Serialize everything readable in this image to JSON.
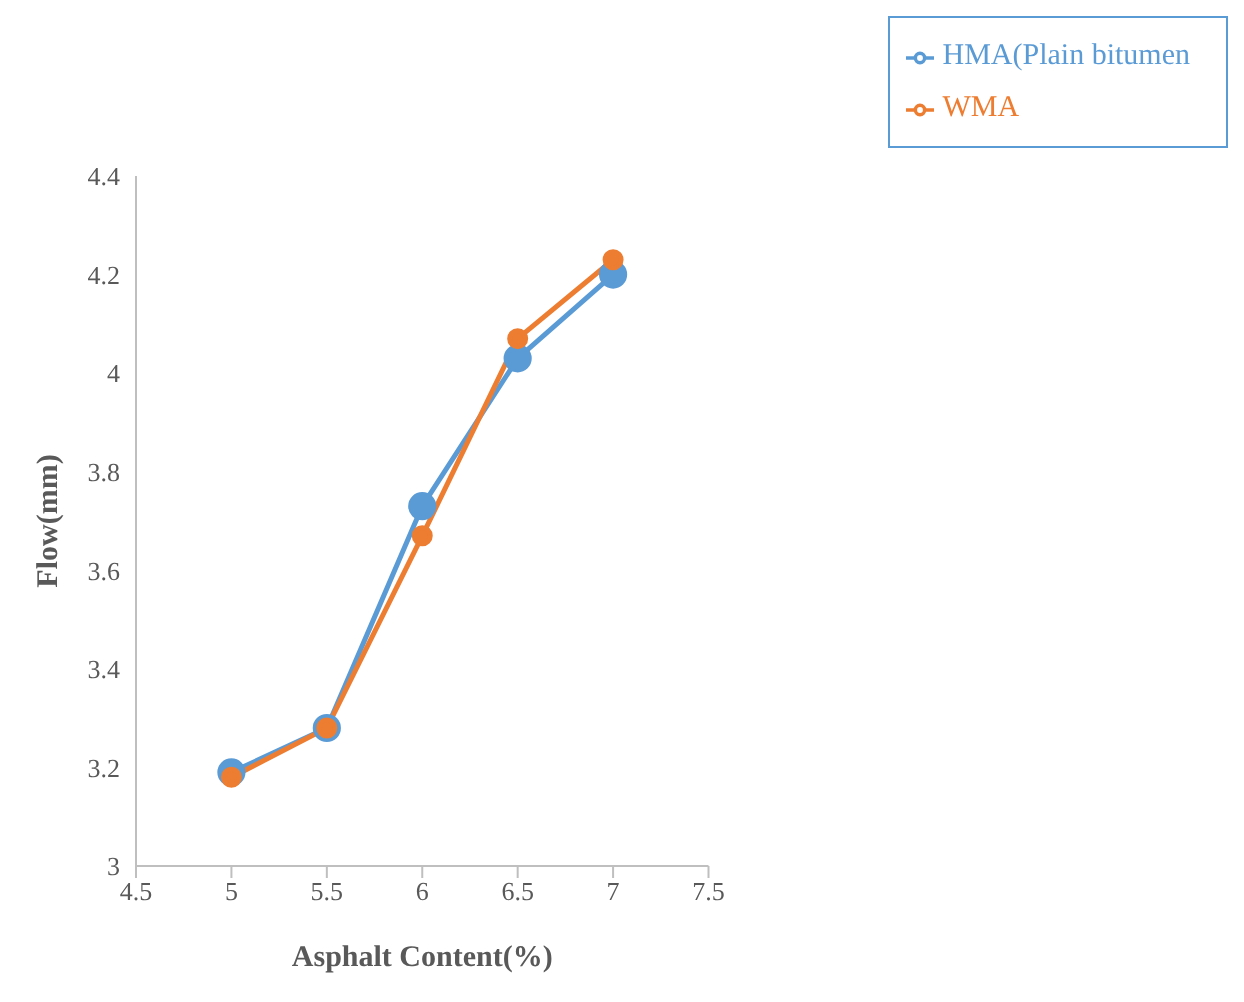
{
  "chart_data": {
    "type": "line",
    "xlabel": "Asphalt Content(%)",
    "ylabel": "Flow(mm)",
    "x": [
      5,
      5.5,
      6,
      6.5,
      7
    ],
    "series": [
      {
        "name": "HMA(Plain bitumen",
        "color": "#5b9bd5",
        "values": [
          3.19,
          3.28,
          3.73,
          4.03,
          4.2
        ]
      },
      {
        "name": "WMA",
        "color": "#ed7d31",
        "values": [
          3.18,
          3.28,
          3.67,
          4.07,
          4.23
        ]
      }
    ],
    "xlim": [
      4.5,
      7.5
    ],
    "xticks": [
      4.5,
      5,
      5.5,
      6,
      6.5,
      7,
      7.5
    ],
    "ylim": [
      3,
      4.4
    ],
    "yticks": [
      3,
      3.2,
      3.4,
      3.6,
      3.8,
      4,
      4.2,
      4.4
    ],
    "grid": false,
    "legend": "top right",
    "marker": "circle",
    "line_style": "solid"
  }
}
